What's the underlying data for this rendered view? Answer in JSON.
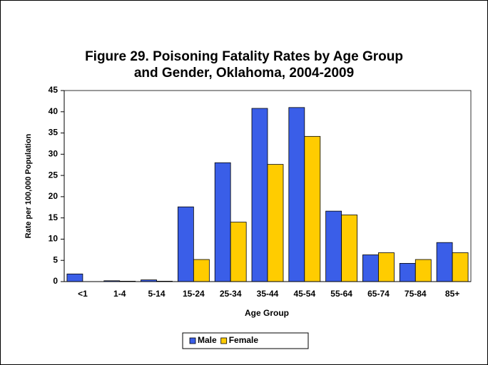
{
  "chart_data": {
    "type": "bar",
    "title": [
      "Figure 29. Poisoning Fatality Rates by Age Group",
      "and Gender, Oklahoma, 2004-2009"
    ],
    "x_label": "Age Group",
    "y_label": "Rate per 100,000 Population",
    "categories": [
      "<1",
      "1-4",
      "5-14",
      "15-24",
      "25-34",
      "35-44",
      "45-54",
      "55-64",
      "65-74",
      "75-84",
      "85+"
    ],
    "series": [
      {
        "name": "Male",
        "color": "#3a5ee8",
        "values": [
          1.8,
          0.2,
          0.4,
          17.6,
          28,
          40.8,
          41,
          16.6,
          6.3,
          4.3,
          9.2
        ]
      },
      {
        "name": "Female",
        "color": "#ffcc00",
        "values": [
          0,
          0.1,
          0.1,
          5.2,
          14,
          27.6,
          34.2,
          15.7,
          6.8,
          5.2,
          6.8
        ]
      }
    ],
    "ylim": [
      0,
      45
    ],
    "yticks": [
      0,
      5,
      10,
      15,
      20,
      25,
      30,
      35,
      40,
      45
    ],
    "grid": false,
    "legend": "bottom"
  }
}
